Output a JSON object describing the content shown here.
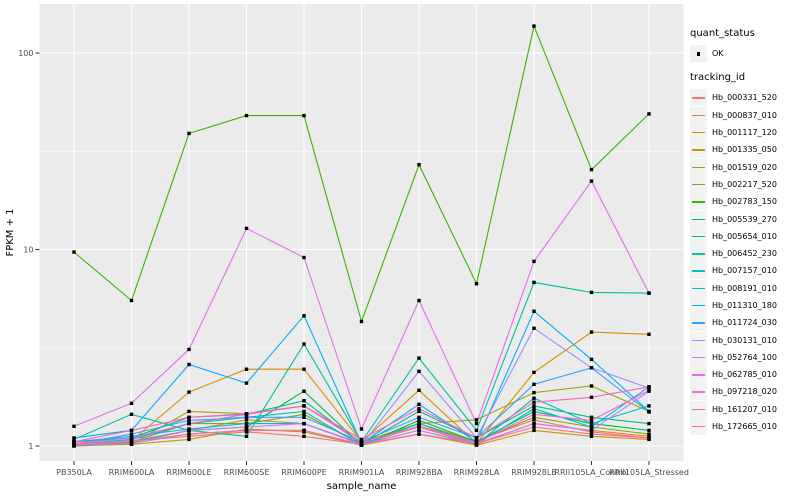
{
  "chart_data": {
    "type": "line",
    "title": "",
    "xlabel": "sample_name",
    "ylabel": "FPKM + 1",
    "y_scale": "log10",
    "y_ticks": [
      1,
      10,
      100
    ],
    "y_minor_ticks": [
      3.162,
      31.62
    ],
    "ylim": [
      0.85,
      175
    ],
    "grid": true,
    "legend_position": "right",
    "point_shape": "filled-square",
    "point_color": "#000000",
    "categories": [
      "PB350LA",
      "RRIM600LA",
      "RRIM600LE",
      "RRIM600SE",
      "RRIM600PE",
      "RRIM901LA",
      "RRIM928BA",
      "RRIM928LA",
      "RRIM928LB",
      "RRII105LA_Control",
      "RRII105LA_Stressed"
    ],
    "series": [
      {
        "name": "Hb_000331_520",
        "color": "#F8766D",
        "values": [
          1.03,
          1.06,
          1.12,
          1.18,
          1.12,
          1.02,
          1.26,
          1.06,
          1.36,
          1.18,
          1.1
        ]
      },
      {
        "name": "Hb_000837_010",
        "color": "#EA8331",
        "values": [
          1.01,
          1.04,
          1.2,
          1.36,
          1.3,
          1.03,
          1.25,
          1.02,
          1.3,
          1.2,
          1.12
        ]
      },
      {
        "name": "Hb_001117_120",
        "color": "#D89000",
        "values": [
          1.02,
          1.06,
          1.88,
          2.46,
          2.46,
          1.05,
          1.92,
          1.03,
          2.37,
          3.8,
          3.7
        ]
      },
      {
        "name": "Hb_001335_050",
        "color": "#C09B00",
        "values": [
          1.0,
          1.02,
          1.08,
          1.22,
          1.18,
          1.01,
          1.15,
          1.01,
          1.2,
          1.12,
          1.08
        ]
      },
      {
        "name": "Hb_001519_020",
        "color": "#A3A500",
        "values": [
          1.01,
          1.03,
          1.5,
          1.46,
          1.6,
          1.05,
          1.3,
          1.36,
          1.87,
          2.02,
          1.5
        ]
      },
      {
        "name": "Hb_002217_520",
        "color": "#7CAE00",
        "values": [
          1.0,
          1.05,
          1.3,
          1.3,
          1.45,
          1.02,
          1.3,
          1.05,
          1.4,
          1.25,
          1.15
        ]
      },
      {
        "name": "Hb_002783_150",
        "color": "#39B600",
        "values": [
          9.7,
          5.5,
          39,
          48,
          48,
          4.3,
          27,
          6.7,
          137,
          25.5,
          49
        ]
      },
      {
        "name": "Hb_005539_270",
        "color": "#00BB4E",
        "values": [
          1.01,
          1.05,
          1.2,
          1.25,
          1.9,
          1.01,
          1.35,
          1.05,
          1.5,
          1.3,
          1.2
        ]
      },
      {
        "name": "Hb_005654_010",
        "color": "#00BF7D",
        "values": [
          1.05,
          1.1,
          1.4,
          1.45,
          1.7,
          1.02,
          1.5,
          1.1,
          1.6,
          1.4,
          1.3
        ]
      },
      {
        "name": "Hb_006452_230",
        "color": "#00C1A3",
        "values": [
          1.08,
          1.45,
          1.2,
          1.12,
          3.3,
          1.05,
          2.8,
          1.2,
          6.8,
          6.05,
          6.0
        ]
      },
      {
        "name": "Hb_007157_010",
        "color": "#00BFC4",
        "values": [
          1.02,
          1.08,
          1.3,
          1.4,
          1.5,
          1.01,
          1.3,
          1.02,
          1.75,
          1.3,
          1.6
        ]
      },
      {
        "name": "Hb_008191_010",
        "color": "#00BAE0",
        "values": [
          1.05,
          1.12,
          1.22,
          1.3,
          1.3,
          1.02,
          1.2,
          1.02,
          1.55,
          1.25,
          2.0
        ]
      },
      {
        "name": "Hb_011310_180",
        "color": "#00B0F6",
        "values": [
          1.1,
          1.2,
          2.6,
          2.09,
          4.6,
          1.03,
          1.63,
          1.05,
          4.85,
          2.76,
          1.5
        ]
      },
      {
        "name": "Hb_011724_030",
        "color": "#35A2FF",
        "values": [
          1.02,
          1.15,
          1.35,
          1.4,
          1.4,
          1.05,
          1.4,
          1.1,
          2.06,
          2.5,
          1.49
        ]
      },
      {
        "name": "Hb_030131_010",
        "color": "#9590FF",
        "values": [
          1.01,
          1.03,
          1.15,
          1.2,
          1.2,
          1.01,
          2.4,
          1.1,
          3.97,
          2.5,
          1.97
        ]
      },
      {
        "name": "Hb_052764_100",
        "color": "#C77CFF",
        "values": [
          1.02,
          1.06,
          1.2,
          1.25,
          1.3,
          1.02,
          1.2,
          1.03,
          1.3,
          1.2,
          1.9
        ]
      },
      {
        "name": "Hb_062785_010",
        "color": "#E76BF3",
        "values": [
          1.26,
          1.65,
          3.1,
          12.8,
          9.1,
          1.22,
          5.5,
          1.3,
          8.7,
          22.3,
          6.0
        ]
      },
      {
        "name": "Hb_097218_020",
        "color": "#FA62DB",
        "values": [
          1.03,
          1.1,
          1.3,
          1.45,
          1.6,
          1.04,
          1.26,
          1.04,
          1.45,
          1.35,
          1.92
        ]
      },
      {
        "name": "Hb_161207_010",
        "color": "#FF62BC",
        "values": [
          1.05,
          1.2,
          1.4,
          1.46,
          1.6,
          1.08,
          1.55,
          1.1,
          1.67,
          1.77,
          2.0
        ]
      },
      {
        "name": "Hb_172665_010",
        "color": "#FF6A98",
        "values": [
          1.02,
          1.05,
          1.15,
          1.2,
          1.2,
          1.02,
          1.15,
          1.03,
          1.25,
          1.15,
          1.1
        ]
      }
    ]
  },
  "legend": {
    "quant_status": {
      "title": "quant_status",
      "items": [
        {
          "label": "OK",
          "symbol": "black-point"
        }
      ]
    },
    "tracking_id": {
      "title": "tracking_id"
    }
  },
  "theme": {
    "panel_bg": "#EBEBEB",
    "grid_color": "#FFFFFF",
    "tick_label_color": "#4D4D4D",
    "tick_mark_color": "#333333",
    "text_color": "#000000",
    "background": "#FFFFFF",
    "legend_key_bg": "#F2F2F2"
  }
}
